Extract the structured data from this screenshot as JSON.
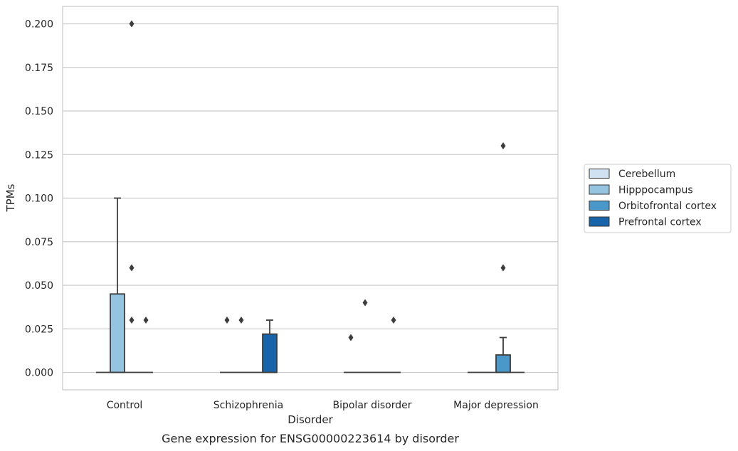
{
  "chart_data": {
    "type": "box",
    "title": "",
    "caption": "Gene expression for ENSG00000223614 by disorder",
    "xlabel": "Disorder",
    "ylabel": "TPMs",
    "ylim": [
      -0.01,
      0.21
    ],
    "yticks": [
      "0.000",
      "0.025",
      "0.050",
      "0.075",
      "0.100",
      "0.125",
      "0.150",
      "0.175",
      "0.200"
    ],
    "grid": "horizontal",
    "legend_position": "right",
    "categories": [
      "Control",
      "Schizophrenia",
      "Bipolar disorder",
      "Major depression"
    ],
    "series": [
      {
        "name": "Cerebellum",
        "color": "#d0e1f2",
        "boxes": [
          {
            "q1": 0,
            "median": 0,
            "q3": 0,
            "whisker_low": 0,
            "whisker_high": 0,
            "outliers": []
          },
          {
            "q1": 0,
            "median": 0,
            "q3": 0,
            "whisker_low": 0,
            "whisker_high": 0,
            "outliers": [
              0.03
            ]
          },
          {
            "q1": 0,
            "median": 0,
            "q3": 0,
            "whisker_low": 0,
            "whisker_high": 0,
            "outliers": [
              0.02
            ]
          },
          {
            "q1": 0,
            "median": 0,
            "q3": 0,
            "whisker_low": 0,
            "whisker_high": 0,
            "outliers": []
          }
        ]
      },
      {
        "name": "Hipppocampus",
        "color": "#94c4df",
        "boxes": [
          {
            "q1": 0,
            "median": 0,
            "q3": 0.045,
            "whisker_low": 0,
            "whisker_high": 0.1,
            "outliers": []
          },
          {
            "q1": 0,
            "median": 0,
            "q3": 0,
            "whisker_low": 0,
            "whisker_high": 0,
            "outliers": [
              0.03
            ]
          },
          {
            "q1": 0,
            "median": 0,
            "q3": 0,
            "whisker_low": 0,
            "whisker_high": 0,
            "outliers": [
              0.04
            ]
          },
          {
            "q1": 0,
            "median": 0,
            "q3": 0,
            "whisker_low": 0,
            "whisker_high": 0,
            "outliers": []
          }
        ]
      },
      {
        "name": "Orbitofrontal cortex",
        "color": "#4a98c9",
        "boxes": [
          {
            "q1": 0,
            "median": 0,
            "q3": 0,
            "whisker_low": 0,
            "whisker_high": 0,
            "outliers": [
              0.03,
              0.06,
              0.2
            ]
          },
          {
            "q1": 0,
            "median": 0,
            "q3": 0,
            "whisker_low": 0,
            "whisker_high": 0,
            "outliers": []
          },
          {
            "q1": 0,
            "median": 0,
            "q3": 0,
            "whisker_low": 0,
            "whisker_high": 0,
            "outliers": []
          },
          {
            "q1": 0,
            "median": 0,
            "q3": 0.01,
            "whisker_low": 0,
            "whisker_high": 0.02,
            "outliers": [
              0.06,
              0.13
            ]
          }
        ]
      },
      {
        "name": "Prefrontal cortex",
        "color": "#1764ab",
        "boxes": [
          {
            "q1": 0,
            "median": 0,
            "q3": 0,
            "whisker_low": 0,
            "whisker_high": 0,
            "outliers": [
              0.03
            ]
          },
          {
            "q1": 0,
            "median": 0,
            "q3": 0.022,
            "whisker_low": 0,
            "whisker_high": 0.03,
            "outliers": []
          },
          {
            "q1": 0,
            "median": 0,
            "q3": 0,
            "whisker_low": 0,
            "whisker_high": 0,
            "outliers": [
              0.03
            ]
          },
          {
            "q1": 0,
            "median": 0,
            "q3": 0,
            "whisker_low": 0,
            "whisker_high": 0,
            "outliers": []
          }
        ]
      }
    ]
  }
}
